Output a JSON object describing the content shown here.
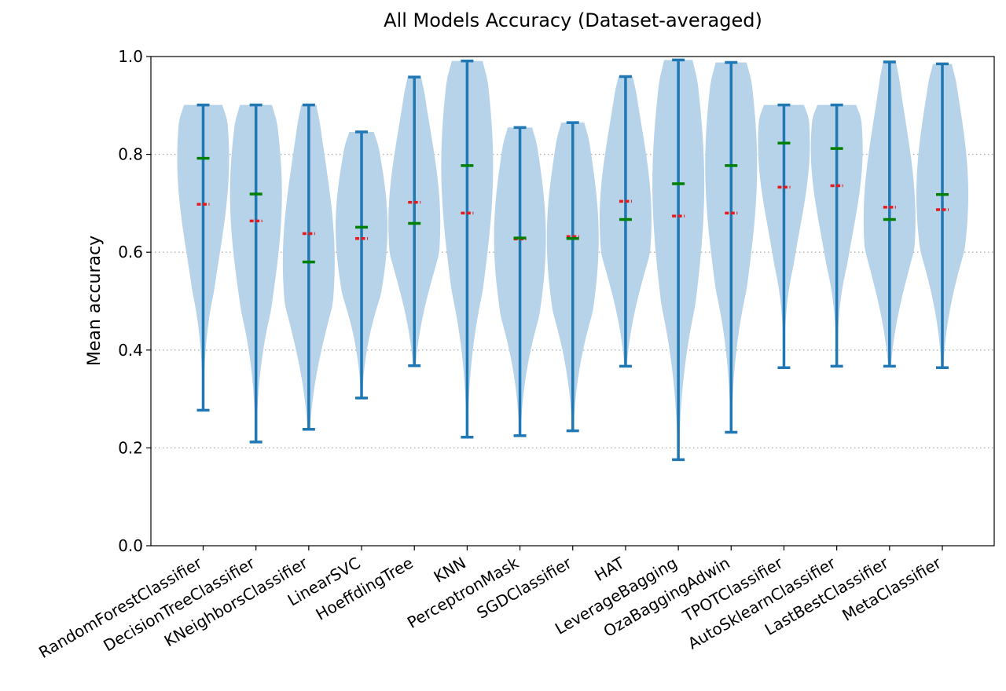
{
  "chart_data": {
    "type": "violin",
    "title": "All Models Accuracy (Dataset-averaged)",
    "xlabel": "",
    "ylabel": "Mean accuracy",
    "ylim": [
      0.0,
      1.0
    ],
    "yticks": [
      "0.0",
      "0.2",
      "0.4",
      "0.6",
      "0.8",
      "1.0"
    ],
    "grid": "horizontal dotted",
    "colors": {
      "violin_fill": "#b7d3e9",
      "whisker": "#1f77b4",
      "mean_marker": "#e41a1c",
      "median_marker": "#008000",
      "grid": "#b0b0b0"
    },
    "categories": [
      "RandomForestClassifier",
      "DecisionTreeClassifier",
      "KNeighborsClassifier",
      "LinearSVC",
      "HoeffdingTree",
      "KNN",
      "PerceptronMask",
      "SGDClassifier",
      "HAT",
      "LeverageBagging",
      "OzaBaggingAdwin",
      "TPOTClassifier",
      "AutoSklearnClassifier",
      "LastBestClassifier",
      "MetaClassifier"
    ],
    "min": [
      0.277,
      0.212,
      0.238,
      0.302,
      0.368,
      0.222,
      0.225,
      0.235,
      0.367,
      0.176,
      0.232,
      0.364,
      0.367,
      0.367,
      0.364
    ],
    "max": [
      0.901,
      0.901,
      0.901,
      0.846,
      0.958,
      0.991,
      0.855,
      0.865,
      0.959,
      0.993,
      0.988,
      0.901,
      0.901,
      0.989,
      0.985
    ],
    "mean": [
      0.698,
      0.664,
      0.638,
      0.628,
      0.702,
      0.68,
      0.627,
      0.632,
      0.704,
      0.674,
      0.68,
      0.733,
      0.736,
      0.692,
      0.687
    ],
    "median": [
      0.792,
      0.719,
      0.58,
      0.651,
      0.659,
      0.777,
      0.629,
      0.628,
      0.667,
      0.74,
      0.777,
      0.823,
      0.812,
      0.667,
      0.718
    ]
  }
}
